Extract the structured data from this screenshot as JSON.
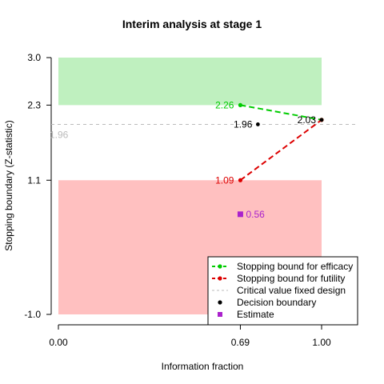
{
  "chart_data": {
    "type": "line",
    "title": "Interim analysis at stage 1",
    "xlabel": "Information fraction",
    "ylabel": "Stopping boundary (Z-statistic)",
    "xlim": [
      0,
      1.14
    ],
    "ylim": [
      -1.0,
      3.0
    ],
    "x_ticks": [
      {
        "value": 0.0,
        "label": "0.00"
      },
      {
        "value": 0.6913,
        "label": "0.69"
      },
      {
        "value": 1.0,
        "label": "1.00"
      }
    ],
    "y_ticks": [
      {
        "value": -1.0,
        "label": "-1.0"
      },
      {
        "value": 1.09,
        "label": "1.1"
      },
      {
        "value": 2.26,
        "label": "2.3"
      },
      {
        "value": 3.0,
        "label": "3.0"
      }
    ],
    "regions": [
      {
        "name": "efficacy",
        "color": "#bff0bf",
        "y_range": [
          2.26,
          3.0
        ]
      },
      {
        "name": "futility",
        "color": "#ffc0c0",
        "y_range": [
          -1.0,
          1.09
        ]
      }
    ],
    "series": [
      {
        "name": "Stopping bound for efficacy",
        "color": "#00cc00",
        "x": [
          0.6913,
          1.0
        ],
        "y": [
          2.26,
          2.03
        ],
        "point_labels": [
          "2.26",
          "2.03"
        ]
      },
      {
        "name": "Stopping bound for futility",
        "color": "#dd0000",
        "x": [
          0.6913,
          1.0
        ],
        "y": [
          1.09,
          2.03
        ],
        "point_labels": [
          "1.09",
          ""
        ]
      },
      {
        "name": "Critical value fixed design",
        "color": "#bbbbbb",
        "y": 1.96,
        "label": "1.96"
      },
      {
        "name": "Decision boundary",
        "color": "#000000",
        "x": [
          0.758,
          1.0
        ],
        "y": [
          1.96,
          2.03
        ],
        "point_labels": [
          "1.96",
          ""
        ]
      },
      {
        "name": "Estimate",
        "color": "#aa22cc",
        "x": [
          0.6913
        ],
        "y": [
          0.56
        ],
        "point_labels": [
          "0.56"
        ]
      }
    ],
    "legend_position": "bottom-right",
    "legend": [
      {
        "label": "Stopping bound for efficacy",
        "color": "#00cc00",
        "symbol": "line-dot"
      },
      {
        "label": "Stopping bound for futility",
        "color": "#dd0000",
        "symbol": "line-dot"
      },
      {
        "label": "Critical value fixed design",
        "color": "#bbbbbb",
        "symbol": "dash"
      },
      {
        "label": "Decision boundary",
        "color": "#000000",
        "symbol": "dot"
      },
      {
        "label": "Estimate",
        "color": "#aa22cc",
        "symbol": "square"
      }
    ]
  }
}
